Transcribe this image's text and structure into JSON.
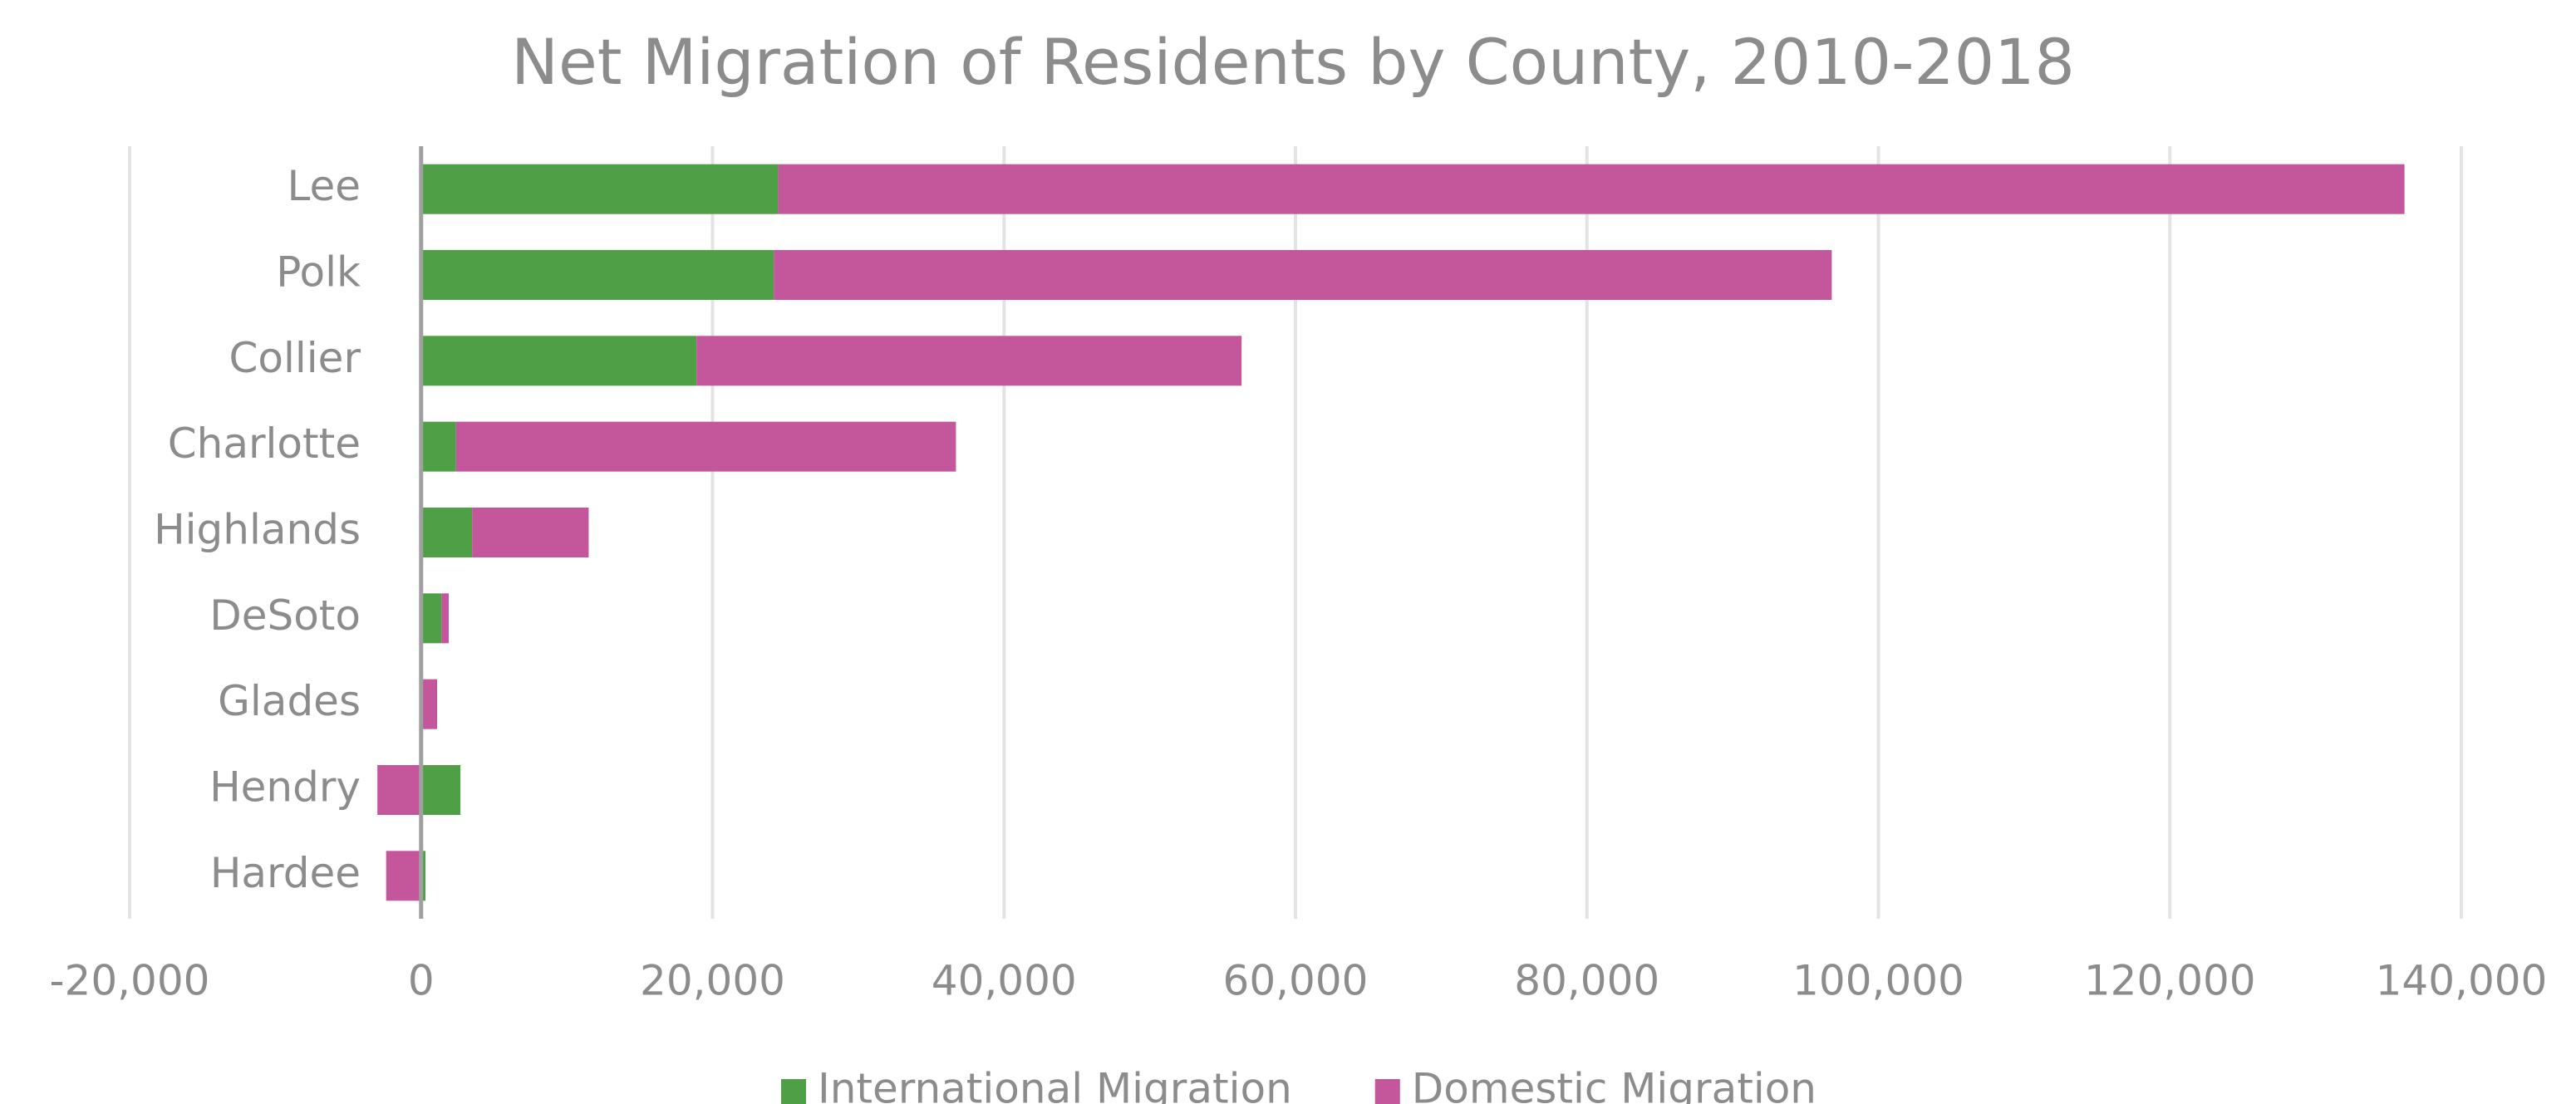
{
  "chart_data": {
    "type": "stacked_bar_horizontal",
    "title": "Net Migration of Residents by County, 2010-2018",
    "categories": [
      "Lee",
      "Polk",
      "Collier",
      "Charlotte",
      "Highlands",
      "DeSoto",
      "Glades",
      "Hendry",
      "Hardee"
    ],
    "series": [
      {
        "name": "International Migration",
        "color": "#4e9f45",
        "values": [
          24500,
          24200,
          18900,
          2400,
          3500,
          1400,
          100,
          2700,
          300
        ]
      },
      {
        "name": "Domestic Migration",
        "color": "#c4579b",
        "values": [
          111600,
          72600,
          37400,
          34300,
          8000,
          500,
          1000,
          -3000,
          -2400
        ]
      }
    ],
    "xlim": [
      -20000,
      140000
    ],
    "xticks": [
      {
        "value": -20000,
        "label": "-20,000"
      },
      0,
      {
        "value": 20000,
        "label": "20,000"
      },
      {
        "value": 40000,
        "label": "40,000"
      },
      {
        "value": 60000,
        "label": "60,000"
      },
      {
        "value": 80000,
        "label": "80,000"
      },
      {
        "value": 100000,
        "label": "100,000"
      },
      {
        "value": 120000,
        "label": "120,000"
      },
      {
        "value": 140000,
        "label": "140,000"
      }
    ],
    "grid": true,
    "legend": "bottom"
  }
}
